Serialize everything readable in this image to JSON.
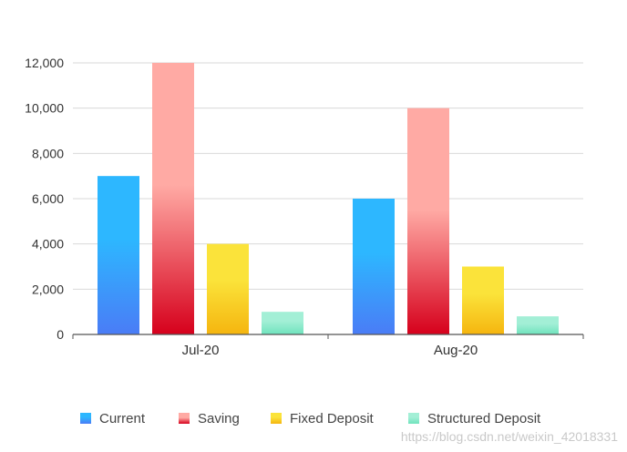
{
  "chart_data": {
    "type": "bar",
    "categories": [
      "Jul-20",
      "Aug-20"
    ],
    "series": [
      {
        "name": "Current",
        "values": [
          7000,
          6000
        ],
        "color_top": "#2db7ff",
        "color_bottom": "#4a7cf6"
      },
      {
        "name": "Saving",
        "values": [
          12000,
          10000
        ],
        "color_top": "#ffaaa4",
        "color_bottom": "#d6001c"
      },
      {
        "name": "Fixed Deposit",
        "values": [
          4000,
          3000
        ],
        "color_top": "#fbe33a",
        "color_bottom": "#f5b50f"
      },
      {
        "name": "Structured Deposit",
        "values": [
          1000,
          800
        ],
        "color_top": "#a3efd6",
        "color_bottom": "#6fe3bd"
      }
    ],
    "y_ticks": [
      "0",
      "2,000",
      "4,000",
      "6,000",
      "8,000",
      "10,000",
      "12,000"
    ],
    "ylim": [
      0,
      12000
    ],
    "grid": true,
    "legend_position": "bottom"
  },
  "watermark": "https://blog.csdn.net/weixin_42018331"
}
